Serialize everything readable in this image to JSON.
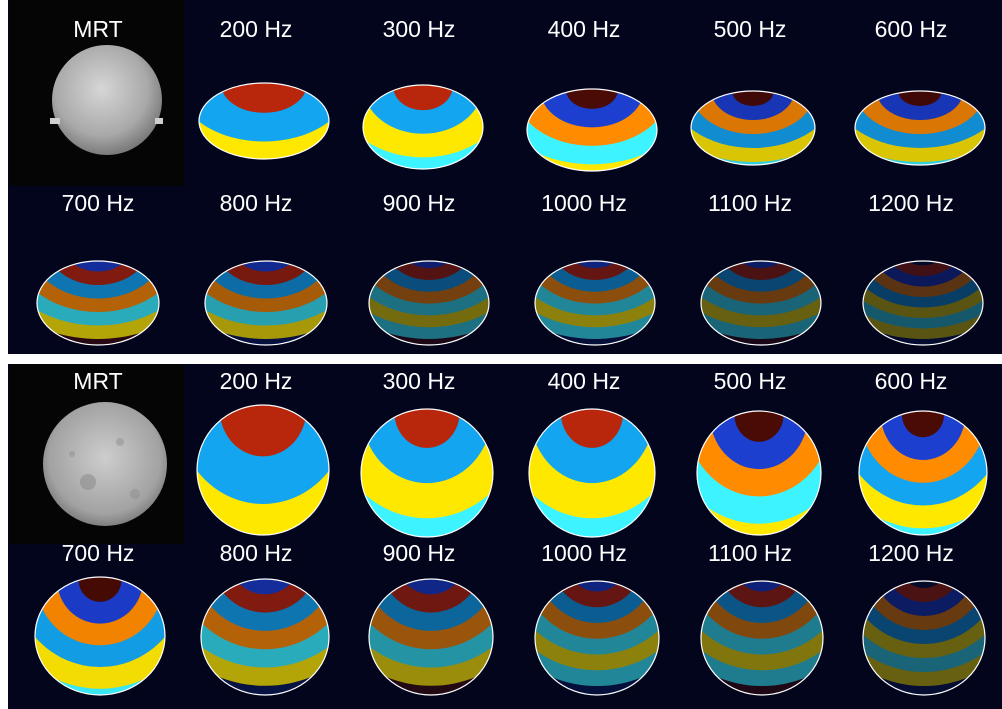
{
  "colors": {
    "background": "#02051c",
    "separator": "#ffffff",
    "label": "#ffffff",
    "contour": "#ffffff",
    "positive": [
      "#4a0b05",
      "#b8260b",
      "#ff8b00",
      "#ffe800"
    ],
    "negative": [
      "#06153f",
      "#1d3fd0",
      "#14a5f0",
      "#3df3ff"
    ]
  },
  "panels": [
    {
      "id": "top",
      "mrt_label": "MRT",
      "frequencies": [
        {
          "label": "200 Hz",
          "amplitude": 1.0,
          "rings": 0.6
        },
        {
          "label": "300 Hz",
          "amplitude": 1.0,
          "rings": 1.0
        },
        {
          "label": "400 Hz",
          "amplitude": 1.0,
          "rings": 1.4
        },
        {
          "label": "500 Hz",
          "amplitude": 0.85,
          "rings": 1.8
        },
        {
          "label": "600 Hz",
          "amplitude": 0.85,
          "rings": 2.1
        },
        {
          "label": "700 Hz",
          "amplitude": 0.7,
          "rings": 2.4
        },
        {
          "label": "800 Hz",
          "amplitude": 0.65,
          "rings": 2.6
        },
        {
          "label": "900 Hz",
          "amplitude": 0.45,
          "rings": 2.8
        },
        {
          "label": "1000 Hz",
          "amplitude": 0.55,
          "rings": 3.0
        },
        {
          "label": "1100 Hz",
          "amplitude": 0.4,
          "rings": 3.2
        },
        {
          "label": "1200 Hz",
          "amplitude": 0.3,
          "rings": 3.4
        }
      ]
    },
    {
      "id": "bottom",
      "mrt_label": "MRT",
      "frequencies": [
        {
          "label": "200 Hz",
          "amplitude": 1.0,
          "rings": 0.5
        },
        {
          "label": "300 Hz",
          "amplitude": 1.0,
          "rings": 0.8
        },
        {
          "label": "400 Hz",
          "amplitude": 1.0,
          "rings": 1.1
        },
        {
          "label": "500 Hz",
          "amplitude": 1.0,
          "rings": 1.6
        },
        {
          "label": "600 Hz",
          "amplitude": 1.0,
          "rings": 1.9
        },
        {
          "label": "700 Hz",
          "amplitude": 0.95,
          "rings": 2.2
        },
        {
          "label": "800 Hz",
          "amplitude": 0.7,
          "rings": 2.5
        },
        {
          "label": "900 Hz",
          "amplitude": 0.6,
          "rings": 2.7
        },
        {
          "label": "1000 Hz",
          "amplitude": 0.55,
          "rings": 2.9
        },
        {
          "label": "1100 Hz",
          "amplitude": 0.5,
          "rings": 3.1
        },
        {
          "label": "1200 Hz",
          "amplitude": 0.4,
          "rings": 3.3
        }
      ]
    }
  ]
}
